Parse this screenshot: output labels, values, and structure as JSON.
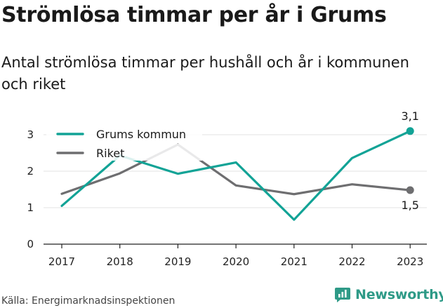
{
  "title": "Strömlösa timmar per år i Grums",
  "subtitle": "Antal strömlösa timmar per hushåll och år i kommunen och riket",
  "source": "Källa: Energimarknadsinspektionen",
  "brand": "Newsworthy",
  "colors": {
    "grums": "#12a396",
    "riket": "#6e6e70",
    "grid": "#e3e3e3",
    "brand": "#2e9a87"
  },
  "chart_data": {
    "type": "line",
    "x": [
      "2017",
      "2018",
      "2019",
      "2020",
      "2021",
      "2022",
      "2023"
    ],
    "ylim": [
      0,
      3.2
    ],
    "yticks": [
      "0",
      "1",
      "2",
      "3"
    ],
    "grid": true,
    "legend_position": "top-left",
    "series": [
      {
        "name": "Grums kommun",
        "values": [
          1.05,
          2.43,
          1.93,
          2.24,
          0.67,
          2.36,
          3.1
        ]
      },
      {
        "name": "Riket",
        "values": [
          1.38,
          1.94,
          2.73,
          1.61,
          1.37,
          1.64,
          1.48
        ]
      }
    ],
    "end_labels": [
      "3,1",
      "1,5"
    ]
  }
}
